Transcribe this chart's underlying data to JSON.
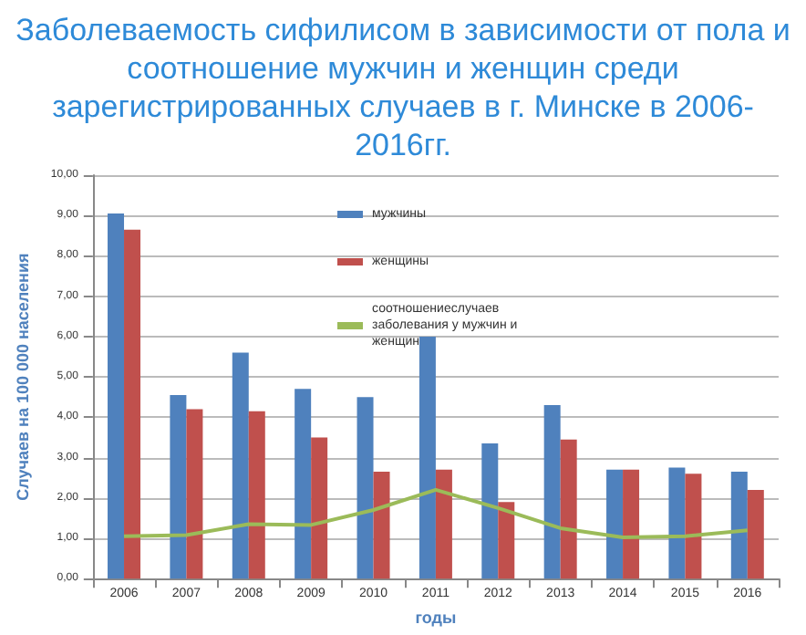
{
  "chart_data": {
    "type": "bar",
    "title": "Заболеваемость сифилисом в зависимости от пола и соотношение мужчин и женщин среди зарегистрированных случаев в г. Минске в 2006-2016гг.",
    "xlabel": "годы",
    "ylabel": "Случаев на 100 000 населения",
    "categories": [
      "2006",
      "2007",
      "2008",
      "2009",
      "2010",
      "2011",
      "2012",
      "2013",
      "2014",
      "2015",
      "2016"
    ],
    "series": [
      {
        "name": "мужчины",
        "color": "#4f81bd",
        "values": [
          9.05,
          4.55,
          5.6,
          4.7,
          4.5,
          6.0,
          3.35,
          4.3,
          2.7,
          2.75,
          2.65
        ]
      },
      {
        "name": "женщины",
        "color": "#c0504d",
        "values": [
          8.65,
          4.2,
          4.15,
          3.5,
          2.65,
          2.7,
          1.9,
          3.45,
          2.7,
          2.6,
          2.2
        ]
      },
      {
        "name": "соотношениеслучаев заболевания у мужчин и женщин",
        "type": "line",
        "color": "#9bbb59",
        "values": [
          1.05,
          1.08,
          1.35,
          1.33,
          1.7,
          2.2,
          1.75,
          1.25,
          1.02,
          1.05,
          1.2
        ]
      }
    ],
    "ylim": [
      0,
      10
    ],
    "yticks": [
      {
        "value": 0,
        "label": "0,00"
      },
      {
        "value": 1,
        "label": "1,00"
      },
      {
        "value": 2,
        "label": "2,00"
      },
      {
        "value": 3,
        "label": "3,00"
      },
      {
        "value": 4,
        "label": "4,00"
      },
      {
        "value": 5,
        "label": "5,00"
      },
      {
        "value": 6,
        "label": "6,00"
      },
      {
        "value": 7,
        "label": "7,00"
      },
      {
        "value": 8,
        "label": "8,00"
      },
      {
        "value": 9,
        "label": "9,00"
      },
      {
        "value": 10,
        "label": "10,00"
      }
    ],
    "grid": "y",
    "legend": "top",
    "marker": "none"
  }
}
